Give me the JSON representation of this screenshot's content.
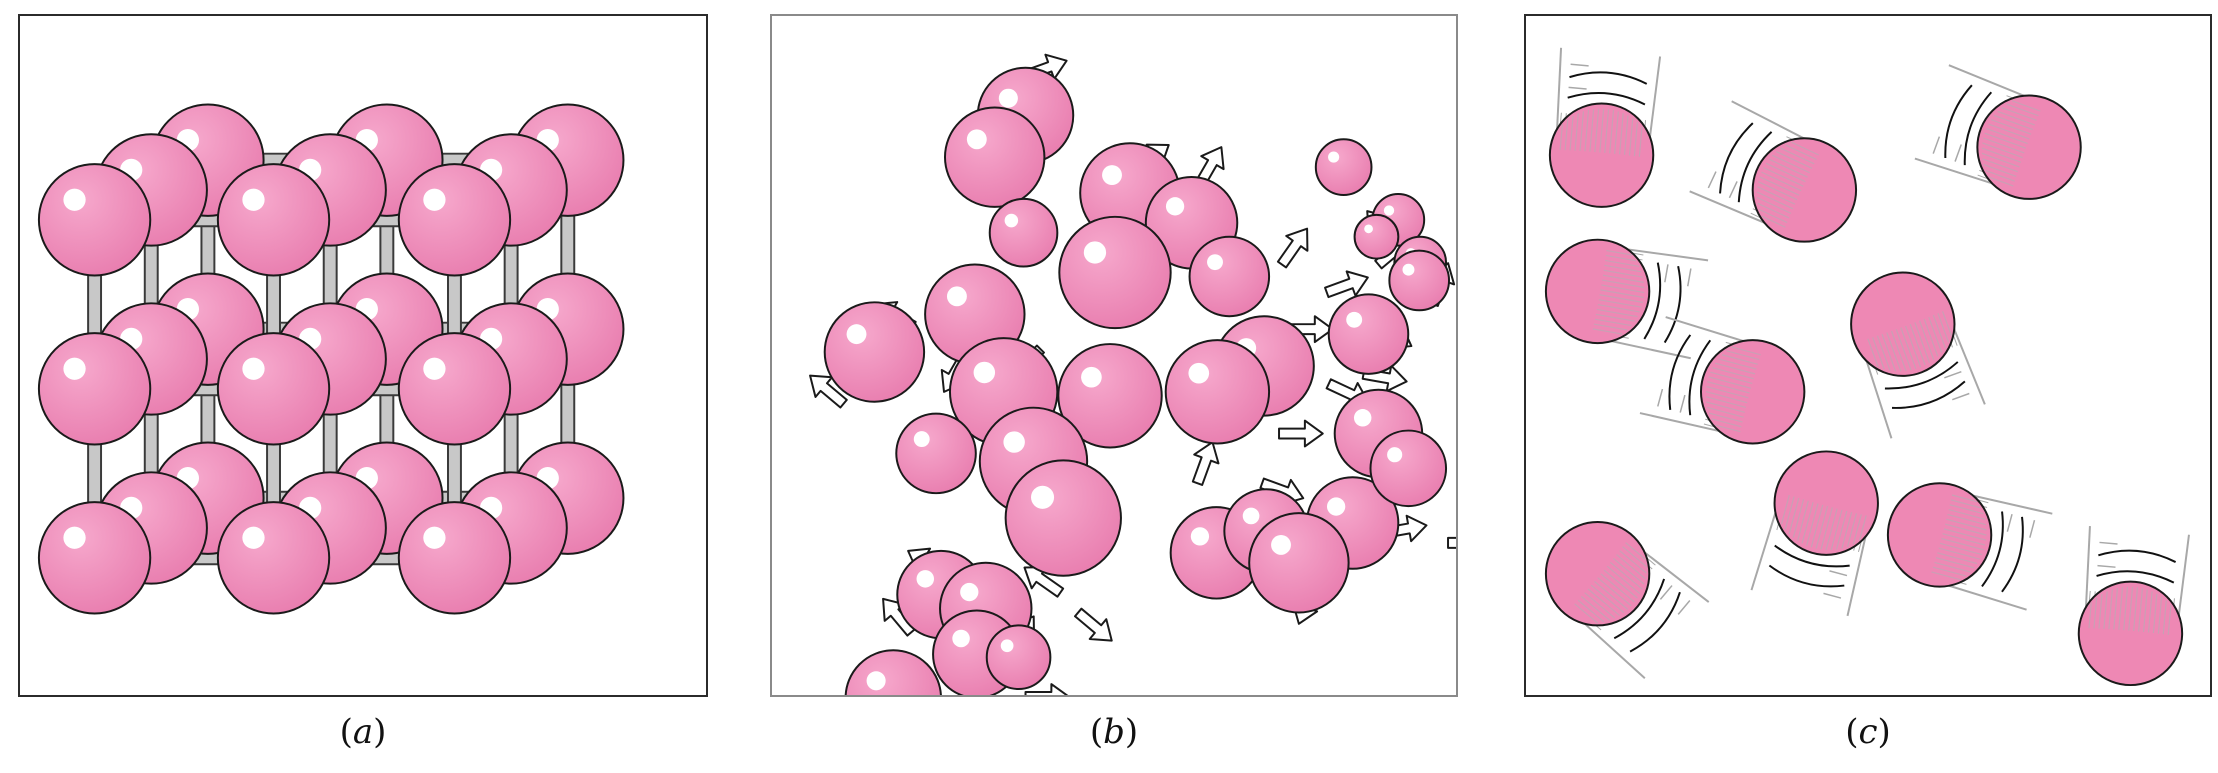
{
  "figure": {
    "panels": [
      {
        "id": "a",
        "caption": "a",
        "state": "solid"
      },
      {
        "id": "b",
        "caption": "b",
        "state": "liquid"
      },
      {
        "id": "c",
        "caption": "c",
        "state": "gas"
      }
    ],
    "colors": {
      "particle_fill": "#ee88b4",
      "particle_stroke": "#1a1a1a",
      "highlight": "#ffffff",
      "bond": "#c8c8c8",
      "trail": "#a8a8a8",
      "frame": "#2b2b2b"
    },
    "icons": [
      "particle-sphere",
      "motion-arrow",
      "motion-trail"
    ]
  }
}
